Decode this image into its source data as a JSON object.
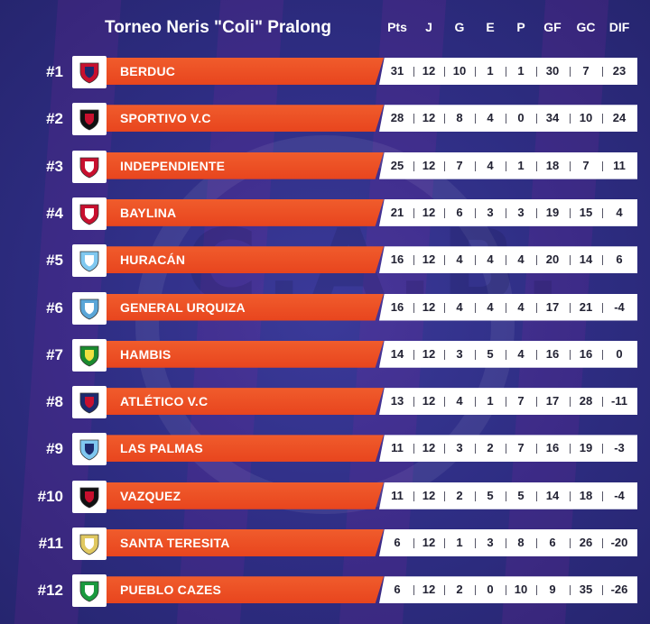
{
  "title": "Torneo Neris \"Coli\" Pralong",
  "headers": [
    "Pts",
    "J",
    "G",
    "E",
    "P",
    "GF",
    "GC",
    "DIF"
  ],
  "colors": {
    "background": "#2f2f86",
    "team_bar": "#e8451e",
    "stats_bar": "#ffffff",
    "text_light": "#ffffff",
    "text_dark": "#222233"
  },
  "teams": [
    {
      "rank": "#1",
      "name": "BERDUC",
      "logo_icon": "berduc-shield-icon",
      "stats": [
        "31",
        "12",
        "10",
        "1",
        "1",
        "30",
        "7",
        "23"
      ]
    },
    {
      "rank": "#2",
      "name": "SPORTIVO V.C",
      "logo_icon": "sportivo-shield-icon",
      "stats": [
        "28",
        "12",
        "8",
        "4",
        "0",
        "34",
        "10",
        "24"
      ]
    },
    {
      "rank": "#3",
      "name": "INDEPENDIENTE",
      "logo_icon": "independiente-shield-icon",
      "stats": [
        "25",
        "12",
        "7",
        "4",
        "1",
        "18",
        "7",
        "11"
      ]
    },
    {
      "rank": "#4",
      "name": "BAYLINA",
      "logo_icon": "baylina-shield-icon",
      "stats": [
        "21",
        "12",
        "6",
        "3",
        "3",
        "19",
        "15",
        "4"
      ]
    },
    {
      "rank": "#5",
      "name": "HURACÁN",
      "logo_icon": "huracan-shield-icon",
      "stats": [
        "16",
        "12",
        "4",
        "4",
        "4",
        "20",
        "14",
        "6"
      ]
    },
    {
      "rank": "#6",
      "name": "GENERAL URQUIZA",
      "logo_icon": "general-urquiza-shield-icon",
      "stats": [
        "16",
        "12",
        "4",
        "4",
        "4",
        "17",
        "21",
        "-4"
      ]
    },
    {
      "rank": "#7",
      "name": "HAMBIS",
      "logo_icon": "hambis-shield-icon",
      "stats": [
        "14",
        "12",
        "3",
        "5",
        "4",
        "16",
        "16",
        "0"
      ]
    },
    {
      "rank": "#8",
      "name": "ATLÉTICO V.C",
      "logo_icon": "atletico-shield-icon",
      "stats": [
        "13",
        "12",
        "4",
        "1",
        "7",
        "17",
        "28",
        "-11"
      ]
    },
    {
      "rank": "#9",
      "name": "LAS PALMAS",
      "logo_icon": "las-palmas-shield-icon",
      "stats": [
        "11",
        "12",
        "3",
        "2",
        "7",
        "16",
        "19",
        "-3"
      ]
    },
    {
      "rank": "#10",
      "name": "VAZQUEZ",
      "logo_icon": "vazquez-shield-icon",
      "stats": [
        "11",
        "12",
        "2",
        "5",
        "5",
        "14",
        "18",
        "-4"
      ]
    },
    {
      "rank": "#11",
      "name": "SANTA TERESITA",
      "logo_icon": "santa-teresita-shield-icon",
      "stats": [
        "6",
        "12",
        "1",
        "3",
        "8",
        "6",
        "26",
        "-20"
      ]
    },
    {
      "rank": "#12",
      "name": "PUEBLO CAZES",
      "logo_icon": "pueblo-cazes-shield-icon",
      "stats": [
        "6",
        "12",
        "2",
        "0",
        "10",
        "9",
        "35",
        "-26"
      ]
    }
  ]
}
